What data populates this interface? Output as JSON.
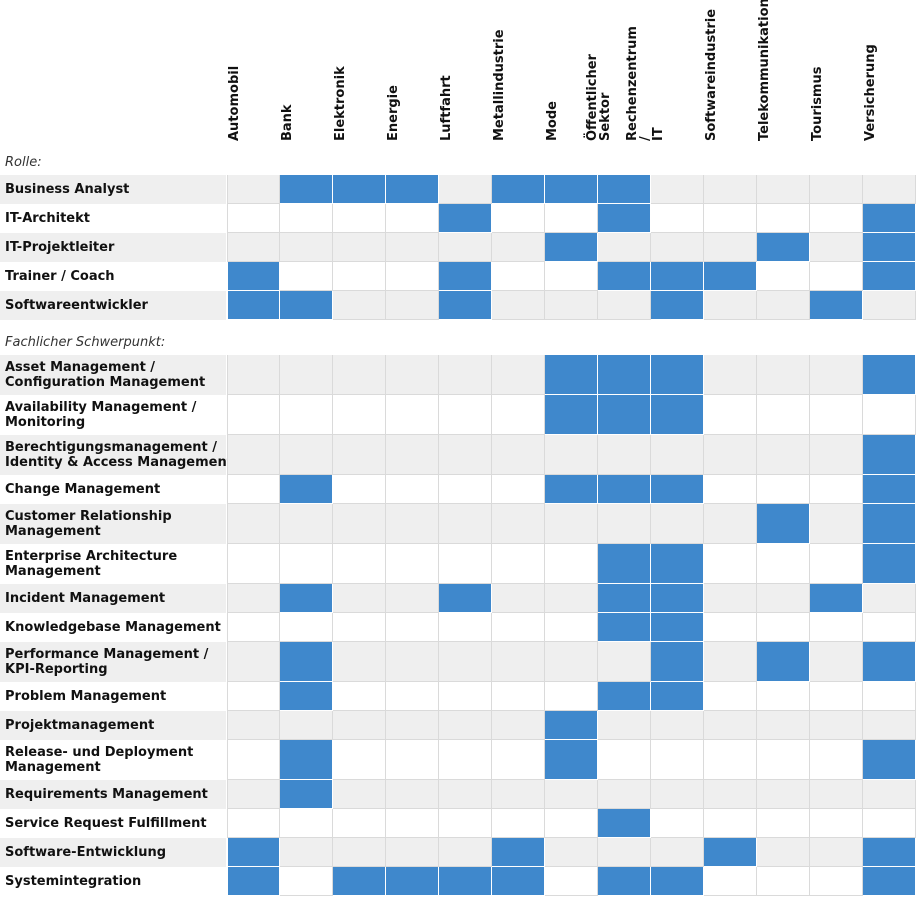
{
  "columns": [
    "Automobil",
    "Bank",
    "Elektronik",
    "Energie",
    "Luftfahrt",
    "Metallindustrie",
    "Mode",
    "Öffentlicher\nSektor",
    "Rechenzentrum\n/\nIT",
    "Softwareindustrie",
    "Telekommunikation",
    "Tourismus",
    "Versicherung"
  ],
  "colors": {
    "active": "#3f88cc",
    "shaded": "#efefef",
    "plain": "#ffffff",
    "grid": "#dadada"
  },
  "sections": [
    {
      "label": "Rolle:",
      "rows": [
        {
          "label": "Business Analyst",
          "cells": [
            0,
            1,
            1,
            1,
            0,
            1,
            1,
            1,
            0,
            0,
            0,
            0,
            0
          ]
        },
        {
          "label": "IT-Architekt",
          "cells": [
            0,
            0,
            0,
            0,
            1,
            0,
            0,
            1,
            0,
            0,
            0,
            0,
            1
          ]
        },
        {
          "label": "IT-Projektleiter",
          "cells": [
            0,
            0,
            0,
            0,
            0,
            0,
            1,
            0,
            0,
            0,
            1,
            0,
            1
          ]
        },
        {
          "label": "Trainer / Coach",
          "cells": [
            1,
            0,
            0,
            0,
            1,
            0,
            0,
            1,
            1,
            1,
            0,
            0,
            1
          ]
        },
        {
          "label": "Softwareentwickler",
          "cells": [
            1,
            1,
            0,
            0,
            1,
            0,
            0,
            0,
            1,
            0,
            0,
            1,
            0
          ]
        }
      ]
    },
    {
      "label": "Fachlicher Schwerpunkt:",
      "rows": [
        {
          "label": "Asset Management /\nConfiguration Management",
          "cells": [
            0,
            0,
            0,
            0,
            0,
            0,
            1,
            1,
            1,
            0,
            0,
            0,
            1
          ]
        },
        {
          "label": "Availability Management /\nMonitoring",
          "cells": [
            0,
            0,
            0,
            0,
            0,
            0,
            1,
            1,
            1,
            0,
            0,
            0,
            0
          ]
        },
        {
          "label": "Berechtigungsmanagement /\nIdentity & Access Management",
          "cells": [
            0,
            0,
            0,
            0,
            0,
            0,
            0,
            0,
            0,
            0,
            0,
            0,
            1
          ]
        },
        {
          "label": "Change Management",
          "cells": [
            0,
            1,
            0,
            0,
            0,
            0,
            1,
            1,
            1,
            0,
            0,
            0,
            1
          ]
        },
        {
          "label": "Customer Relationship\nManagement",
          "cells": [
            0,
            0,
            0,
            0,
            0,
            0,
            0,
            0,
            0,
            0,
            1,
            0,
            1
          ]
        },
        {
          "label": "Enterprise Architecture\nManagement",
          "cells": [
            0,
            0,
            0,
            0,
            0,
            0,
            0,
            1,
            1,
            0,
            0,
            0,
            1
          ]
        },
        {
          "label": "Incident Management",
          "cells": [
            0,
            1,
            0,
            0,
            1,
            0,
            0,
            1,
            1,
            0,
            0,
            1,
            0
          ]
        },
        {
          "label": "Knowledgebase Management",
          "cells": [
            0,
            0,
            0,
            0,
            0,
            0,
            0,
            1,
            1,
            0,
            0,
            0,
            0
          ]
        },
        {
          "label": "Performance Management /\nKPI-Reporting",
          "cells": [
            0,
            1,
            0,
            0,
            0,
            0,
            0,
            0,
            1,
            0,
            1,
            0,
            1
          ]
        },
        {
          "label": "Problem Management",
          "cells": [
            0,
            1,
            0,
            0,
            0,
            0,
            0,
            1,
            1,
            0,
            0,
            0,
            0
          ]
        },
        {
          "label": "Projektmanagement",
          "cells": [
            0,
            0,
            0,
            0,
            0,
            0,
            1,
            0,
            0,
            0,
            0,
            0,
            0
          ]
        },
        {
          "label": "Release- und Deployment\nManagement",
          "cells": [
            0,
            1,
            0,
            0,
            0,
            0,
            1,
            0,
            0,
            0,
            0,
            0,
            1
          ]
        },
        {
          "label": "Requirements Management",
          "cells": [
            0,
            1,
            0,
            0,
            0,
            0,
            0,
            0,
            0,
            0,
            0,
            0,
            0
          ]
        },
        {
          "label": "Service Request Fulfillment",
          "cells": [
            0,
            0,
            0,
            0,
            0,
            0,
            0,
            1,
            0,
            0,
            0,
            0,
            0
          ]
        },
        {
          "label": "Software-Entwicklung",
          "cells": [
            1,
            0,
            0,
            0,
            0,
            1,
            0,
            0,
            0,
            1,
            0,
            0,
            1
          ]
        },
        {
          "label": "Systemintegration",
          "cells": [
            1,
            0,
            1,
            1,
            1,
            1,
            0,
            1,
            1,
            0,
            0,
            0,
            1
          ]
        }
      ]
    }
  ]
}
